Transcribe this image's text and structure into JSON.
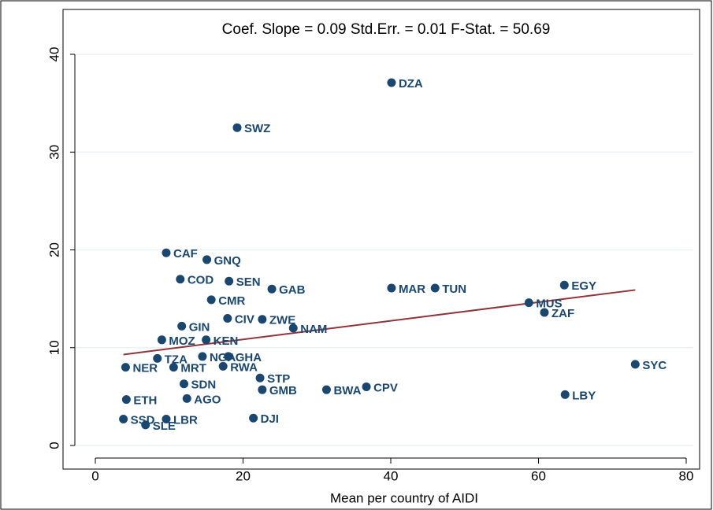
{
  "chart_data": {
    "type": "scatter",
    "subtitle": "Coef. Slope = 0.09   Std.Err. = 0.01   F-Stat. = 50.69",
    "x_label": "Mean per country of AIDI",
    "color": "#1a476f",
    "fit_color": "#90353b",
    "grid": true,
    "xlim": [
      0,
      80
    ],
    "ylim": [
      0,
      40
    ],
    "xticks": [
      0,
      20,
      40,
      60,
      80
    ],
    "yticks": [
      0,
      10,
      20,
      30,
      40
    ],
    "labels": [
      "DZA",
      "SWZ",
      "CAF",
      "GNQ",
      "COD",
      "SEN",
      "GAB",
      "MAR",
      "TUN",
      "EGY",
      "MUS",
      "ZAF",
      "SYC",
      "LBY",
      "CMR",
      "CIV",
      "ZWE",
      "NAM",
      "GIN",
      "MOZ",
      "KEN",
      "TZA",
      "NGA",
      "GHA",
      "NER",
      "MRT",
      "RWA",
      "STP",
      "GMB",
      "BWA",
      "CPV",
      "SDN",
      "AGO",
      "ETH",
      "DJI",
      "LBR",
      "SSD",
      "SLE"
    ],
    "x": [
      40.1,
      19.2,
      9.6,
      15.1,
      11.5,
      18.1,
      23.9,
      40.1,
      46.0,
      63.5,
      58.7,
      60.8,
      73.1,
      63.6,
      15.7,
      17.9,
      22.6,
      26.8,
      11.7,
      9.0,
      15.0,
      8.4,
      14.5,
      18.0,
      4.1,
      10.6,
      17.3,
      22.3,
      22.6,
      31.3,
      36.7,
      12.0,
      12.4,
      4.2,
      21.4,
      9.6,
      3.8,
      6.8
    ],
    "y": [
      37.1,
      32.5,
      19.7,
      19.0,
      17.0,
      16.8,
      16.0,
      16.1,
      16.1,
      16.4,
      14.6,
      13.6,
      8.3,
      5.2,
      14.9,
      13.0,
      12.9,
      12.0,
      12.2,
      10.8,
      10.8,
      8.9,
      9.1,
      9.1,
      8.0,
      8.0,
      8.1,
      6.9,
      5.7,
      5.7,
      6.0,
      6.3,
      4.8,
      4.7,
      2.8,
      2.7,
      2.7,
      2.1
    ],
    "fit_line": {
      "x": [
        3.8,
        73.1
      ],
      "y": [
        9.3,
        15.9
      ]
    }
  }
}
